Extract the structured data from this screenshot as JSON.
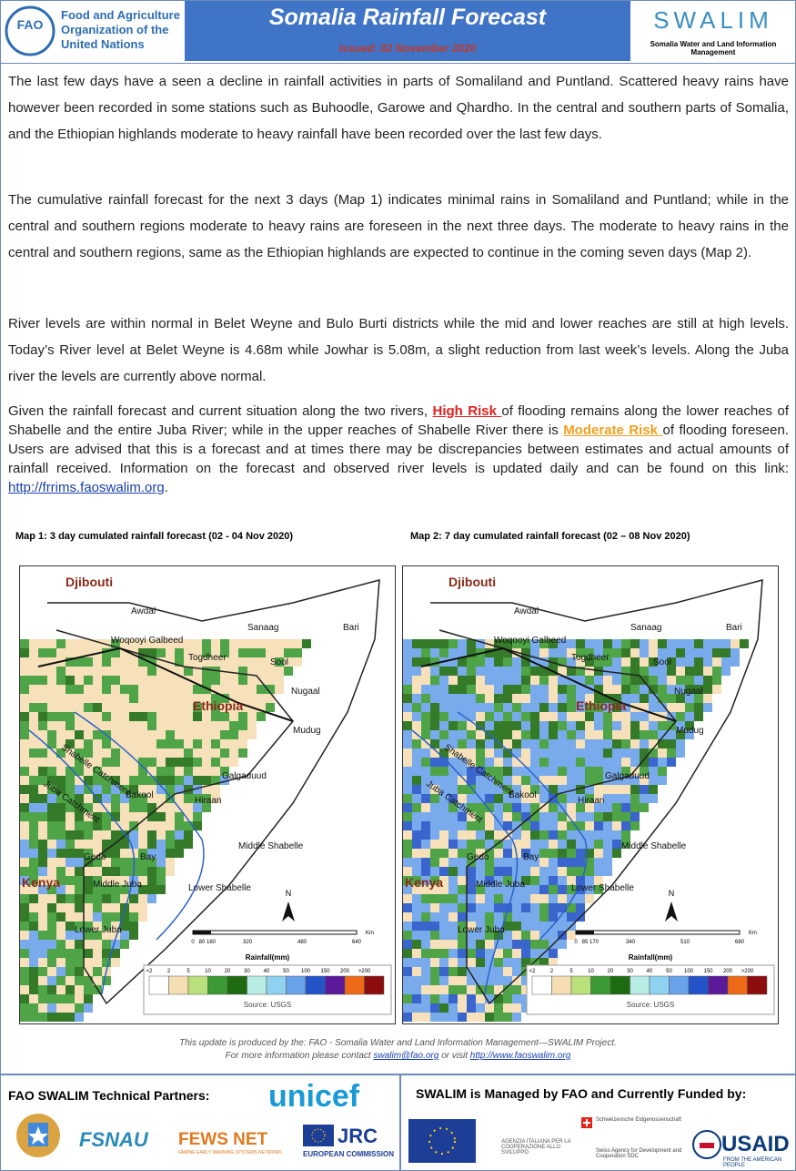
{
  "header": {
    "fao_lines": [
      "Food and Agriculture",
      "Organization of the",
      "United Nations"
    ],
    "fao_letters": "FAO",
    "title": "Somalia Rainfall Forecast",
    "issued": "Issued: 02 November 2020",
    "swalim": "SWALIM",
    "swalim_tagline": "Somalia Water and Land Information Management"
  },
  "paragraphs": [
    "The last few days have a seen a decline in rainfall activities in parts of Somaliland and Puntland. Scattered heavy rains have however been recorded in some stations such as Buhoodle, Garowe and Qhardho. In the central and southern parts of Somalia, and the Ethiopian highlands moderate to heavy rainfall have been recorded over the last few days.",
    "The cumulative rainfall forecast for the next 3 days (Map 1) indicates minimal rains in Somaliland and Puntland; while in the central and southern regions moderate to heavy rains are foreseen in the next three days. The moderate to heavy rains in the central and southern regions, same as the Ethiopian highlands are expected to continue in the coming seven days (Map 2).",
    "River levels are  within normal in Belet Weyne and Bulo Burti  districts while the mid and lower reaches are still at high levels. Today’s River level at Belet Weyne is 4.68m while Jowhar is 5.08m, a slight reduction from last week’s levels. Along the Juba river the levels are currently above normal."
  ],
  "risk_paragraph": {
    "intro": "Given the rainfall forecast and current situation along the two rivers, ",
    "high_risk": "High Risk ",
    "middle": "of flooding remains along the lower reaches of Shabelle and the entire Juba River; while in the upper reaches of Shabelle River there is ",
    "moderate_risk": "Moderate Risk ",
    "end": "of flooding foreseen. Users are advised that this is a forecast and at times there may be discrepancies between estimates and actual amounts of rainfall received. Information on the forecast and observed river levels is updated daily and can be found on this link: ",
    "link": "http://frrims.faoswalim.org",
    "tail": "."
  },
  "maps": [
    {
      "title": "Map 1: 3 day cumulated rainfall forecast  (02 - 04 Nov 2020)",
      "labels": [
        "Djibouti",
        "Awdal",
        "Woqooyi Galbeed",
        "Sanaag",
        "Bari",
        "Togdheer",
        "Sool",
        "Nugaal",
        "Ethiopia",
        "Mudug",
        "Galgaduud",
        "Bakool",
        "Hiraan",
        "Gedo",
        "Bay",
        "Middle Shabelle",
        "Kenya",
        "Middle Juba",
        "Lower Shabelle",
        "Lower Juba",
        "Shabelle Catchment",
        "Juba Catchment"
      ],
      "north": "N",
      "scale": [
        "0",
        "80",
        "160",
        "320",
        "480",
        "640"
      ],
      "scale_unit": "Km",
      "legend_title": "Rainfall(mm)",
      "legend": [
        "<2",
        "2",
        "5",
        "10",
        "20",
        "30",
        "40",
        "50",
        "100",
        "150",
        "200",
        ">200"
      ],
      "source": "Source: USGS"
    },
    {
      "title": "Map 2: 7 day cumulated rainfall forecast  (02 – 08 Nov 2020)",
      "labels": [
        "Djibouti",
        "Awdal",
        "Woqooyi Galbeed",
        "Sanaag",
        "Bari",
        "Togdheer",
        "Sool",
        "Nugaal",
        "Ethiopia",
        "Mudug",
        "Galgaduud",
        "Bakool",
        "Hiraan",
        "Gedo",
        "Bay",
        "Middle Shabelle",
        "Kenya",
        "Middle Juba",
        "Lower Shabelle",
        "Lower Juba",
        "Shabelle Catchment",
        "Juba Catchment"
      ],
      "north": "N",
      "scale": [
        "0",
        "85",
        "170",
        "340",
        "510",
        "680"
      ],
      "scale_unit": "Km",
      "legend_title": "Rainfall(mm)",
      "legend": [
        "<2",
        "2",
        "5",
        "10",
        "20",
        "30",
        "40",
        "50",
        "100",
        "150",
        "200",
        ">200"
      ],
      "source": "Source: USGS"
    }
  ],
  "footer_note": {
    "line1": "This update is produced by the: FAO - Somalia Water and Land Information Management—SWALIM Project.",
    "contact": "For more information please contact ",
    "email": "swalim@fao.org",
    "visit": " or visit ",
    "website": "http://www.faoswalim.org"
  },
  "partners": {
    "title": "FAO SWALIM Technical Partners:",
    "unicef": "unicef",
    "fsnau": "FSNAU",
    "fews": "FEWS NET",
    "fews_sub": "FAMINE EARLY WARNING SYSTEMS NETWORK",
    "jrc": "JRC",
    "jrc_sub": "EUROPEAN COMMISSION"
  },
  "funders": {
    "title": "SWALIM is Managed by FAO and Currently Funded by:",
    "aics": "AGENZIA ITALIANA PER LA COOPERAZIONE ALLO SVILUPPO",
    "swiss": "Schweizerische Eidgenossenschaft",
    "sdc": "Swiss Agency for Development and Cooperation SDC",
    "usaid": "USAID",
    "usaid_sub": "FROM THE AMERICAN PEOPLE"
  }
}
